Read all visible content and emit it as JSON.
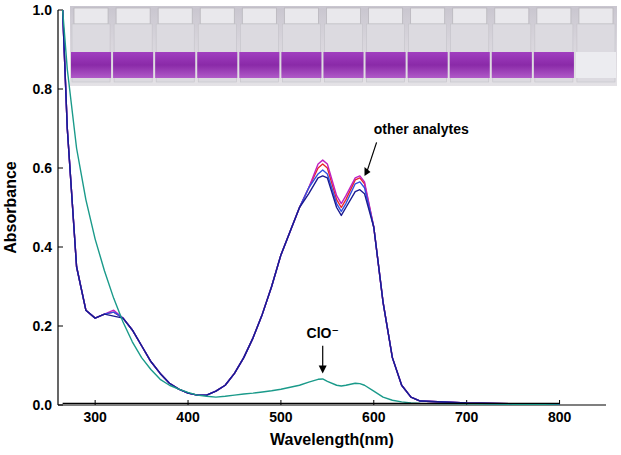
{
  "chart_data": {
    "type": "line",
    "x_label": "Wavelength(nm)",
    "y_label": "Absorbance",
    "annotations": [
      "other analytes",
      "ClO⁻"
    ],
    "xlim": [
      260,
      850
    ],
    "ylim": [
      0,
      1.0
    ],
    "xticks": [
      300,
      400,
      500,
      600,
      700,
      800
    ],
    "yticks": [
      {
        "value": 0,
        "label": "0.0"
      },
      {
        "value": 0.2,
        "label": "0.2"
      },
      {
        "value": 0.4,
        "label": "0.4"
      },
      {
        "value": 0.6,
        "label": "0.6"
      },
      {
        "value": 0.8,
        "label": "0.8"
      },
      {
        "value": 1.0,
        "label": "1.0"
      }
    ],
    "grid": false,
    "x": [
      265,
      270,
      280,
      290,
      300,
      310,
      320,
      330,
      340,
      350,
      360,
      370,
      380,
      390,
      400,
      410,
      420,
      430,
      440,
      450,
      460,
      470,
      480,
      490,
      500,
      510,
      520,
      530,
      540,
      545,
      550,
      560,
      565,
      570,
      580,
      585,
      590,
      600,
      610,
      620,
      630,
      640,
      650,
      700,
      750,
      800
    ],
    "series": [
      {
        "color": "#e8262b",
        "values": [
          1.0,
          0.7,
          0.35,
          0.24,
          0.22,
          0.23,
          0.235,
          0.22,
          0.19,
          0.15,
          0.11,
          0.08,
          0.055,
          0.04,
          0.03,
          0.025,
          0.025,
          0.035,
          0.05,
          0.08,
          0.12,
          0.17,
          0.23,
          0.3,
          0.38,
          0.44,
          0.5,
          0.55,
          0.6,
          0.61,
          0.6,
          0.52,
          0.5,
          0.52,
          0.57,
          0.575,
          0.56,
          0.45,
          0.26,
          0.12,
          0.05,
          0.02,
          0.01,
          0.005,
          0.003,
          0.0
        ]
      },
      {
        "color": "#c020c0",
        "values": [
          1.0,
          0.7,
          0.35,
          0.24,
          0.22,
          0.23,
          0.24,
          0.22,
          0.19,
          0.15,
          0.11,
          0.08,
          0.055,
          0.04,
          0.03,
          0.025,
          0.025,
          0.035,
          0.05,
          0.08,
          0.12,
          0.17,
          0.23,
          0.3,
          0.38,
          0.44,
          0.5,
          0.55,
          0.61,
          0.62,
          0.61,
          0.53,
          0.51,
          0.53,
          0.575,
          0.58,
          0.565,
          0.45,
          0.26,
          0.12,
          0.05,
          0.02,
          0.01,
          0.005,
          0.003,
          0.0
        ]
      },
      {
        "color": "#3050e0",
        "values": [
          1.0,
          0.7,
          0.35,
          0.24,
          0.22,
          0.23,
          0.235,
          0.22,
          0.19,
          0.15,
          0.11,
          0.08,
          0.055,
          0.04,
          0.03,
          0.025,
          0.025,
          0.035,
          0.05,
          0.08,
          0.12,
          0.17,
          0.23,
          0.3,
          0.38,
          0.44,
          0.5,
          0.55,
          0.585,
          0.595,
          0.585,
          0.51,
          0.49,
          0.51,
          0.56,
          0.565,
          0.55,
          0.45,
          0.26,
          0.12,
          0.05,
          0.02,
          0.01,
          0.005,
          0.003,
          0.0
        ]
      },
      {
        "color": "#1a1a90",
        "values": [
          1.0,
          0.7,
          0.35,
          0.24,
          0.22,
          0.23,
          0.225,
          0.22,
          0.19,
          0.15,
          0.11,
          0.08,
          0.055,
          0.04,
          0.03,
          0.025,
          0.025,
          0.035,
          0.05,
          0.08,
          0.12,
          0.17,
          0.23,
          0.3,
          0.38,
          0.44,
          0.5,
          0.535,
          0.575,
          0.58,
          0.575,
          0.5,
          0.48,
          0.5,
          0.54,
          0.545,
          0.535,
          0.45,
          0.26,
          0.12,
          0.05,
          0.02,
          0.01,
          0.005,
          0.003,
          0.0
        ]
      },
      {
        "color": "#1a9a8a",
        "values": [
          1.0,
          0.85,
          0.65,
          0.52,
          0.42,
          0.34,
          0.27,
          0.21,
          0.16,
          0.12,
          0.09,
          0.065,
          0.05,
          0.04,
          0.032,
          0.025,
          0.022,
          0.02,
          0.022,
          0.025,
          0.028,
          0.03,
          0.033,
          0.036,
          0.04,
          0.045,
          0.05,
          0.058,
          0.065,
          0.066,
          0.06,
          0.05,
          0.048,
          0.05,
          0.055,
          0.054,
          0.05,
          0.035,
          0.02,
          0.012,
          0.008,
          0.005,
          0.004,
          0.003,
          0.002,
          0.0
        ]
      },
      {
        "color": "#000000",
        "values": [
          0.004,
          0.004,
          0.004,
          0.004,
          0.004,
          0.004,
          0.004,
          0.004,
          0.004,
          0.004,
          0.004,
          0.004,
          0.004,
          0.004,
          0.004,
          0.004,
          0.004,
          0.004,
          0.004,
          0.004,
          0.004,
          0.004,
          0.004,
          0.004,
          0.004,
          0.004,
          0.004,
          0.004,
          0.004,
          0.004,
          0.004,
          0.004,
          0.004,
          0.004,
          0.004,
          0.004,
          0.004,
          0.004,
          0.004,
          0.004,
          0.004,
          0.004,
          0.004,
          0.004,
          0.004,
          0.004
        ]
      }
    ]
  }
}
